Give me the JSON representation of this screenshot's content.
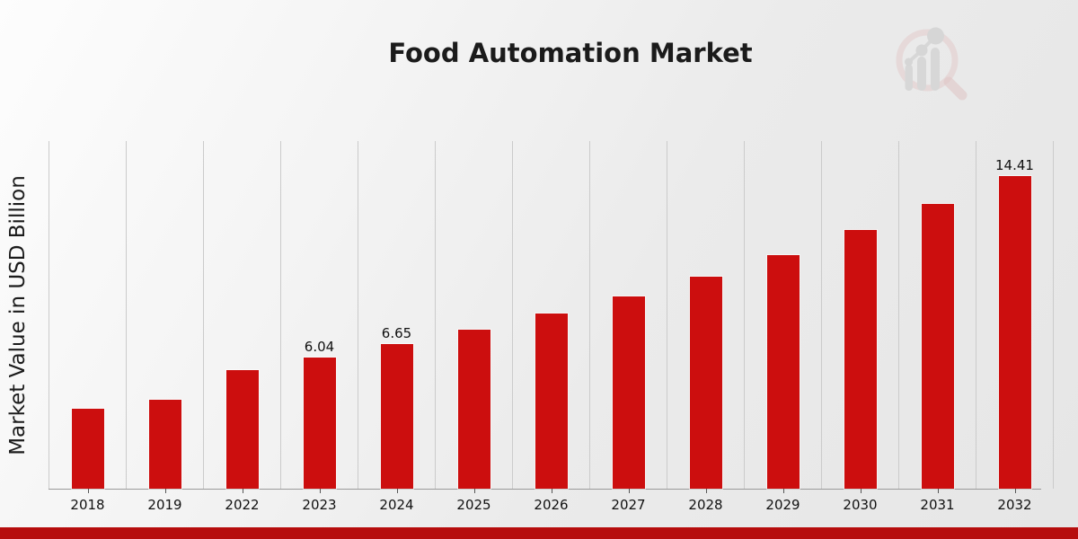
{
  "page": {
    "title": "Food Automation Market",
    "accent_bar_color": "#b60d0d",
    "background_tint": "#e9e9e9"
  },
  "chart_data": {
    "type": "bar",
    "title": "Food Automation Market",
    "xlabel": "",
    "ylabel": "Market Value in USD Billion",
    "categories": [
      "2018",
      "2019",
      "2022",
      "2023",
      "2024",
      "2025",
      "2026",
      "2027",
      "2028",
      "2029",
      "2030",
      "2031",
      "2032"
    ],
    "values": [
      3.7,
      4.11,
      5.48,
      6.04,
      6.65,
      7.32,
      8.06,
      8.87,
      9.77,
      10.77,
      11.9,
      13.1,
      14.41
    ],
    "value_labels": [
      "",
      "",
      "",
      "6.04",
      "6.65",
      "",
      "",
      "",
      "",
      "",
      "",
      "",
      "14.41"
    ],
    "ylim": [
      0,
      16
    ],
    "grid": "vertical-column-separators",
    "legend": "none",
    "bar_color": "#cc0e0e",
    "units": "USD Billion"
  },
  "logo": {
    "name": "market-research-chart-magnifier-watermark",
    "ring_color": "#dcb3b3",
    "bars_color": "#c9c9c9"
  }
}
